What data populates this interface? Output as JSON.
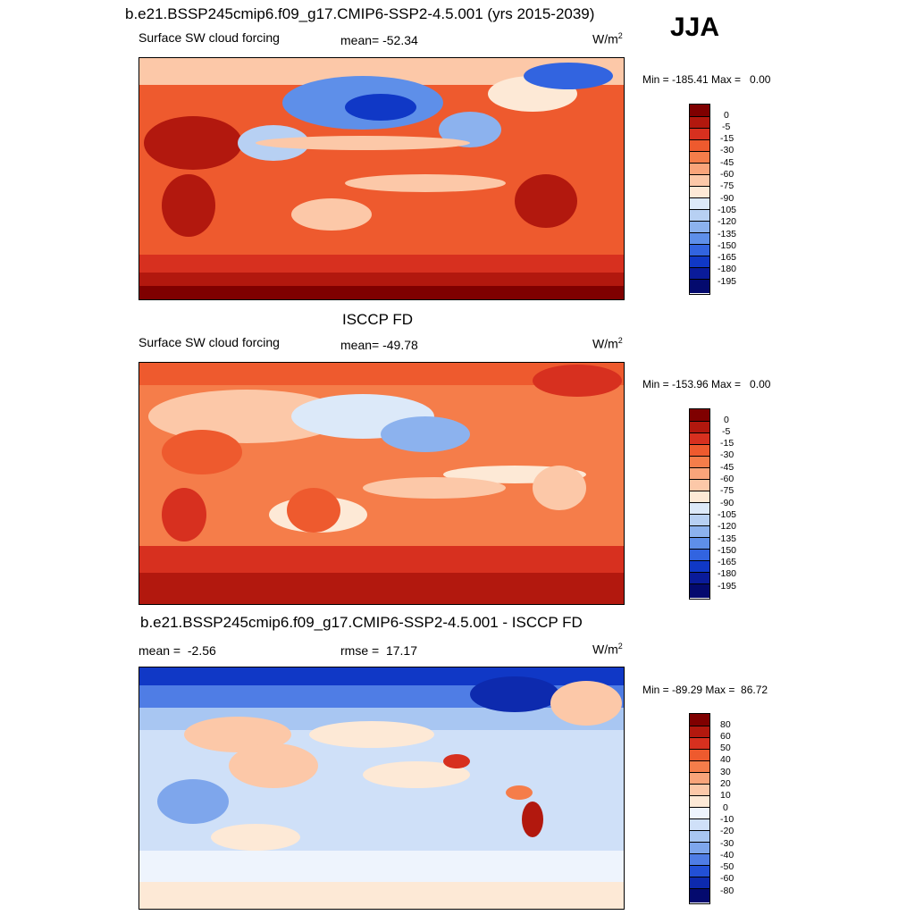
{
  "season": "JJA",
  "panels": [
    {
      "title": "b.e21.BSSP245cmip6.f09_g17.CMIP6-SSP2-4.5.001 (yrs 2015-2039)",
      "left": "Surface SW cloud forcing",
      "center": "mean= -52.34",
      "units": "W/m",
      "units_sup": "2",
      "minmax": "Min = -185.41 Max =   0.00",
      "ticks": [
        "0",
        "-5",
        "-15",
        "-30",
        "-45",
        "-60",
        "-75",
        "-90",
        "-105",
        "-120",
        "-135",
        "-150",
        "-165",
        "-180",
        "-195"
      ],
      "colors": [
        "#7f0000",
        "#b2180e",
        "#d7301f",
        "#ee5a2e",
        "#f57d4a",
        "#f9a47a",
        "#fcc8a8",
        "#fde9d6",
        "#dce9f9",
        "#b7d0f3",
        "#8cb2ee",
        "#5e8fe9",
        "#3264e0",
        "#1038c6",
        "#0a1b9a",
        "#040a6e"
      ],
      "chart_data": {
        "type": "heatmap",
        "title": "b.e21.BSSP245cmip6.f09_g17.CMIP6-SSP2-4.5.001 (yrs 2015-2039)",
        "mean": -52.34,
        "min": -185.41,
        "max": 0.0,
        "levels": [
          0,
          -5,
          -15,
          -30,
          -45,
          -60,
          -75,
          -90,
          -105,
          -120,
          -135,
          -150,
          -165,
          -180,
          -195
        ]
      }
    },
    {
      "title": "ISCCP FD",
      "left": "Surface SW cloud forcing",
      "center": "mean= -49.78",
      "units": "W/m",
      "units_sup": "2",
      "minmax": "Min = -153.96 Max =   0.00",
      "ticks": [
        "0",
        "-5",
        "-15",
        "-30",
        "-45",
        "-60",
        "-75",
        "-90",
        "-105",
        "-120",
        "-135",
        "-150",
        "-165",
        "-180",
        "-195"
      ],
      "colors": [
        "#7f0000",
        "#b2180e",
        "#d7301f",
        "#ee5a2e",
        "#f57d4a",
        "#f9a47a",
        "#fcc8a8",
        "#fde9d6",
        "#dce9f9",
        "#b7d0f3",
        "#8cb2ee",
        "#5e8fe9",
        "#3264e0",
        "#1038c6",
        "#0a1b9a",
        "#040a6e"
      ],
      "chart_data": {
        "type": "heatmap",
        "title": "ISCCP FD",
        "mean": -49.78,
        "min": -153.96,
        "max": 0.0,
        "levels": [
          0,
          -5,
          -15,
          -30,
          -45,
          -60,
          -75,
          -90,
          -105,
          -120,
          -135,
          -150,
          -165,
          -180,
          -195
        ]
      }
    },
    {
      "title": "b.e21.BSSP245cmip6.f09_g17.CMIP6-SSP2-4.5.001 - ISCCP FD",
      "left": "mean =  -2.56",
      "center": "rmse =  17.17",
      "units": "W/m",
      "units_sup": "2",
      "minmax": "Min = -89.29 Max =  86.72",
      "ticks": [
        "80",
        "60",
        "50",
        "40",
        "30",
        "20",
        "10",
        "0",
        "-10",
        "-20",
        "-30",
        "-40",
        "-50",
        "-60",
        "-80"
      ],
      "colors": [
        "#7f0000",
        "#b2180e",
        "#d7301f",
        "#ee5a2e",
        "#f57d4a",
        "#f9a47a",
        "#fcc8a8",
        "#fde9d6",
        "#eef4fd",
        "#cfe0f8",
        "#a8c6f2",
        "#7ea6ec",
        "#4f7de5",
        "#2250d6",
        "#0d2aae",
        "#040a6e"
      ],
      "chart_data": {
        "type": "heatmap",
        "title": "b.e21.BSSP245cmip6.f09_g17.CMIP6-SSP2-4.5.001 - ISCCP FD",
        "mean": -2.56,
        "rmse": 17.17,
        "min": -89.29,
        "max": 86.72,
        "levels": [
          80,
          60,
          50,
          40,
          30,
          20,
          10,
          0,
          -10,
          -20,
          -30,
          -40,
          -50,
          -60,
          -80
        ]
      }
    }
  ]
}
